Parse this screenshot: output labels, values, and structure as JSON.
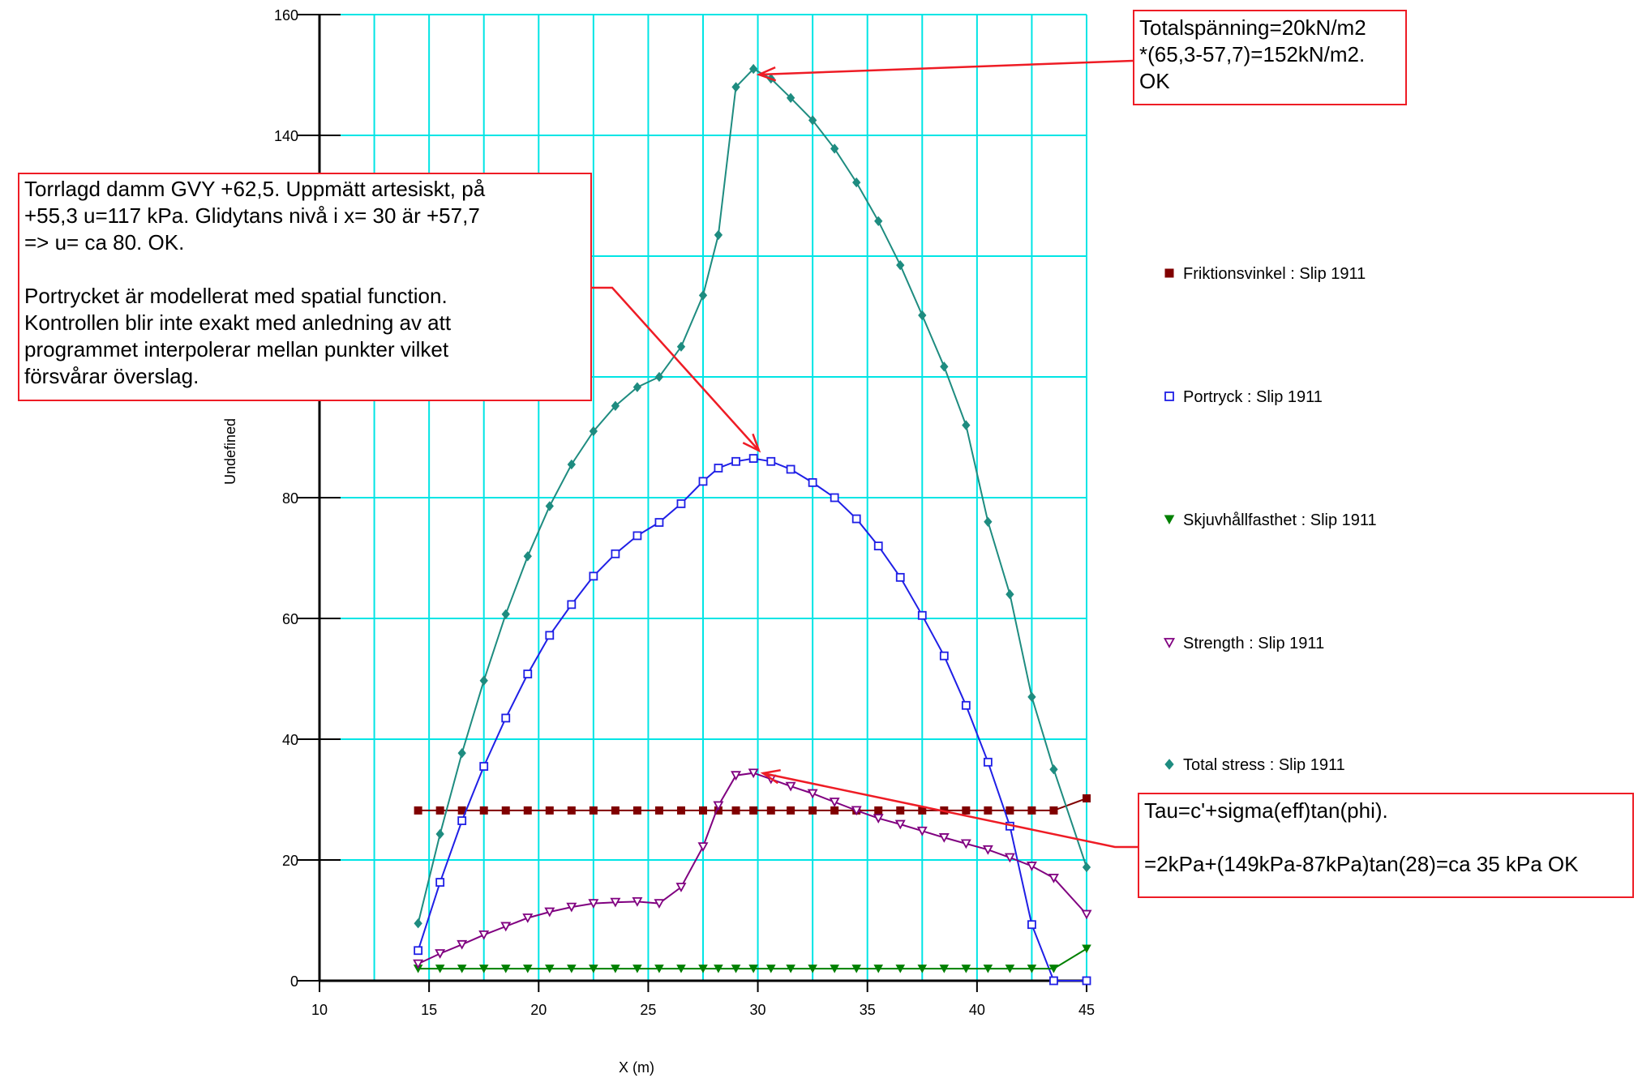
{
  "chart_data": {
    "type": "line",
    "xlabel": "X (m)",
    "ylabel": "Undefined",
    "xlim": [
      10,
      45
    ],
    "ylim": [
      0,
      160
    ],
    "xticks": [
      "10",
      "15",
      "20",
      "25",
      "30",
      "35",
      "40",
      "45"
    ],
    "yticks": [
      "0",
      "20",
      "40",
      "60",
      "80",
      "140",
      "160"
    ],
    "grid": true,
    "legend_position": "right",
    "series": [
      {
        "name": "Friktionsvinkel : Slip 1911",
        "color": "#800000",
        "marker": "square-filled",
        "x": [
          14.5,
          15.5,
          16.5,
          17.5,
          18.5,
          19.5,
          20.5,
          21.5,
          22.5,
          23.5,
          24.5,
          25.5,
          26.5,
          27.5,
          28.2,
          29,
          29.8,
          30.6,
          31.5,
          32.5,
          33.5,
          34.5,
          35.5,
          36.5,
          37.5,
          38.5,
          39.5,
          40.5,
          41.5,
          42.5,
          43.5,
          45
        ],
        "y": [
          28.2,
          28.2,
          28.2,
          28.2,
          28.2,
          28.2,
          28.2,
          28.2,
          28.2,
          28.2,
          28.2,
          28.2,
          28.2,
          28.2,
          28.2,
          28.2,
          28.2,
          28.2,
          28.2,
          28.2,
          28.2,
          28.2,
          28.2,
          28.2,
          28.2,
          28.2,
          28.2,
          28.2,
          28.2,
          28.2,
          28.2,
          30.2
        ]
      },
      {
        "name": "Portryck : Slip 1911",
        "color": "#1f1fe6",
        "marker": "square-open",
        "x": [
          14.5,
          15.5,
          16.5,
          17.5,
          18.5,
          19.5,
          20.5,
          21.5,
          22.5,
          23.5,
          24.5,
          25.5,
          26.5,
          27.5,
          28.2,
          29,
          29.8,
          30.6,
          31.5,
          32.5,
          33.5,
          34.5,
          35.5,
          36.5,
          37.5,
          38.5,
          39.5,
          40.5,
          41.5,
          42.5,
          43.5,
          45
        ],
        "y": [
          5,
          16.3,
          26.5,
          35.5,
          43.5,
          50.8,
          57.2,
          62.3,
          67,
          70.7,
          73.7,
          75.9,
          79,
          82.7,
          84.9,
          86,
          86.5,
          86,
          84.7,
          82.5,
          80,
          76.5,
          72,
          66.8,
          60.5,
          53.8,
          45.6,
          36.2,
          25.6,
          9.3,
          0,
          0
        ]
      },
      {
        "name": "Skjuvhållfasthet : Slip 1911",
        "color": "#008000",
        "marker": "triangle-down-filled",
        "x": [
          14.5,
          15.5,
          16.5,
          17.5,
          18.5,
          19.5,
          20.5,
          21.5,
          22.5,
          23.5,
          24.5,
          25.5,
          26.5,
          27.5,
          28.2,
          29,
          29.8,
          30.6,
          31.5,
          32.5,
          33.5,
          34.5,
          35.5,
          36.5,
          37.5,
          38.5,
          39.5,
          40.5,
          41.5,
          42.5,
          43.5,
          45
        ],
        "y": [
          2,
          2,
          2,
          2,
          2,
          2,
          2,
          2,
          2,
          2,
          2,
          2,
          2,
          2,
          2,
          2,
          2,
          2,
          2,
          2,
          2,
          2,
          2,
          2,
          2,
          2,
          2,
          2,
          2,
          2,
          2,
          5.3
        ]
      },
      {
        "name": "Strength : Slip 1911",
        "color": "#800080",
        "marker": "triangle-down-open",
        "x": [
          14.5,
          15.5,
          16.5,
          17.5,
          18.5,
          19.5,
          20.5,
          21.5,
          22.5,
          23.5,
          24.5,
          25.5,
          26.5,
          27.5,
          28.2,
          29,
          29.8,
          30.6,
          31.5,
          32.5,
          33.5,
          34.5,
          35.5,
          36.5,
          37.5,
          38.5,
          39.5,
          40.5,
          41.5,
          42.5,
          43.5,
          45
        ],
        "y": [
          2.8,
          4.5,
          6,
          7.6,
          9,
          10.4,
          11.4,
          12.2,
          12.8,
          13,
          13.1,
          12.8,
          15.5,
          22.2,
          29,
          34,
          34.4,
          33.4,
          32.2,
          31,
          29.6,
          28.2,
          26.9,
          25.9,
          24.8,
          23.7,
          22.7,
          21.7,
          20.4,
          19,
          17,
          11
        ]
      },
      {
        "name": "Total stress  : Slip 1911",
        "color": "#1e8c80",
        "marker": "diamond-filled",
        "x": [
          14.5,
          15.5,
          16.5,
          17.5,
          18.5,
          19.5,
          20.5,
          21.5,
          22.5,
          23.5,
          24.5,
          25.5,
          26.5,
          27.5,
          28.2,
          29,
          29.8,
          30.6,
          31.5,
          32.5,
          33.5,
          34.5,
          35.5,
          36.5,
          37.5,
          38.5,
          39.5,
          40.5,
          41.5,
          42.5,
          43.5,
          45
        ],
        "y": [
          9.5,
          24.3,
          37.7,
          49.7,
          60.7,
          70.3,
          78.6,
          85.5,
          91,
          95.2,
          98.3,
          100,
          105,
          113.5,
          123.5,
          148,
          151,
          149.4,
          146.2,
          142.5,
          137.8,
          132.2,
          125.8,
          118.5,
          110.2,
          101.7,
          92,
          76,
          64,
          47,
          35,
          18.8
        ]
      }
    ],
    "annotations": [
      {
        "id": "total-stress",
        "text": "Totalspänning=20kN/m2\n*(65,3-57,7)=152kN/m2.\nOK"
      },
      {
        "id": "pore-pressure",
        "text": "Torrlagd damm GVY +62,5. Uppmätt artesiskt, på\n+55,3 u=117 kPa. Glidytans nivå i x= 30 är +57,7\n=> u= ca 80. OK.\n\nPortrycket är modellerat med spatial function.\nKontrollen blir inte exakt med anledning av att\nprogrammet interpolerar mellan punkter vilket\nförsvårar överslag."
      },
      {
        "id": "shear-strength",
        "text": "Tau=c'+sigma(eff)tan(phi).\n\n=2kPa+(149kPa-87kPa)tan(28)=ca 35 kPa OK"
      }
    ],
    "annotation_border_color": "#ee1c25",
    "grid_color": "#00e5e5"
  }
}
